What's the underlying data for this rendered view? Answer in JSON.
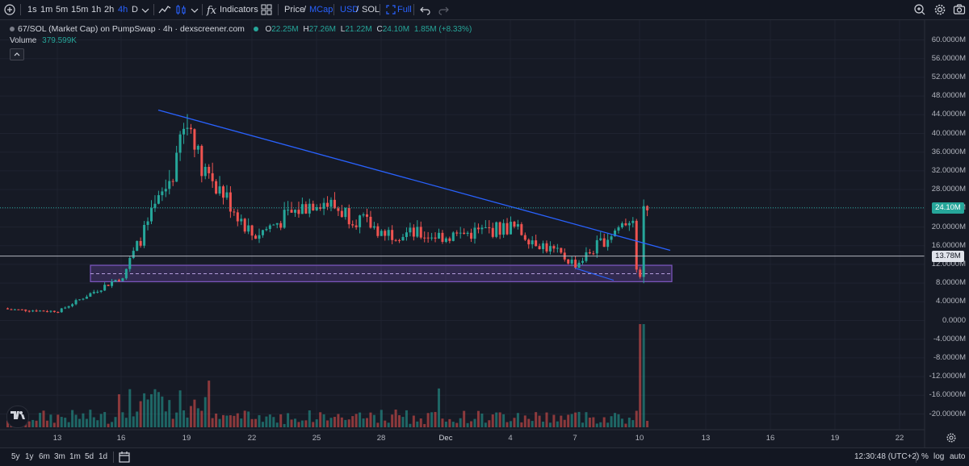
{
  "toolbar": {
    "intervals": [
      {
        "label": "1s",
        "active": false
      },
      {
        "label": "1m",
        "active": false
      },
      {
        "label": "5m",
        "active": false
      },
      {
        "label": "15m",
        "active": false
      },
      {
        "label": "1h",
        "active": false
      },
      {
        "label": "2h",
        "active": false
      },
      {
        "label": "4h",
        "active": true
      },
      {
        "label": "D",
        "active": false
      }
    ],
    "indicators_label": "Indicators",
    "price_label": "Price",
    "slash": "/",
    "mcap_label": "MCap",
    "usd_label": "USD",
    "sol_label": "SOL",
    "full_label": "Full"
  },
  "legend": {
    "symbol": "67/SOL (Market Cap) on PumpSwap · 4h · dexscreener.com",
    "o_label": "O",
    "o_value": "22.25M",
    "h_label": "H",
    "h_value": "27.26M",
    "l_label": "L",
    "l_value": "21.22M",
    "c_label": "C",
    "c_value": "24.10M",
    "change": "1.85M (+8.33%)",
    "volume_label": "Volume",
    "volume_value": "379.599K"
  },
  "price_axis": [
    "60.0000M",
    "56.0000M",
    "52.0000M",
    "48.0000M",
    "44.0000M",
    "40.0000M",
    "36.0000M",
    "32.0000M",
    "28.0000M",
    "24.0000M",
    "20.0000M",
    "16.0000M",
    "12.0000M",
    "8.0000M",
    "4.0000M",
    "0.0000",
    "-4.0000M",
    "-8.0000M",
    "-12.0000M",
    "-16.0000M",
    "-20.0000M"
  ],
  "price_tags": {
    "last_price": "24.10M",
    "horizontal_line": "13.78M"
  },
  "time_axis": [
    "13",
    "16",
    "19",
    "22",
    "25",
    "28",
    "Dec",
    "4",
    "7",
    "10",
    "13",
    "16",
    "19",
    "22"
  ],
  "bottom_bar": {
    "ranges": [
      "5y",
      "1y",
      "6m",
      "3m",
      "1m",
      "5d",
      "1d"
    ],
    "clock": "12:30:48 (UTC+2)",
    "percent_label": "%",
    "log_label": "log",
    "auto_label": "auto"
  },
  "colors": {
    "up": "#26a69a",
    "down": "#ef5350",
    "trendline": "#2962ff",
    "zone_border": "#7e57c2",
    "background": "#161a25"
  },
  "chart_data": {
    "type": "candlestick",
    "unit": "M",
    "ylim": [
      -22,
      62
    ],
    "anchors": [
      {
        "x": "13",
        "value": 2.0
      },
      {
        "x": "16",
        "value": 9.5
      },
      {
        "x": "19",
        "value": 38
      },
      {
        "x": "22",
        "value": 18
      },
      {
        "x": "25",
        "value": 26
      },
      {
        "x": "28",
        "value": 19
      },
      {
        "x": "Dec",
        "value": 18
      },
      {
        "x": "4",
        "value": 20
      },
      {
        "x": "7",
        "value": 12
      },
      {
        "x": "10",
        "value": 24.1
      }
    ],
    "trendline": {
      "start": {
        "x": "18",
        "value": 45
      },
      "end": {
        "x": "11",
        "value": 15
      }
    },
    "zone": {
      "from": "15",
      "to": "11",
      "high": 11.8,
      "low": 8.3,
      "mid": 10.0
    },
    "horizontal_level": 13.78,
    "last_price": 24.1
  }
}
